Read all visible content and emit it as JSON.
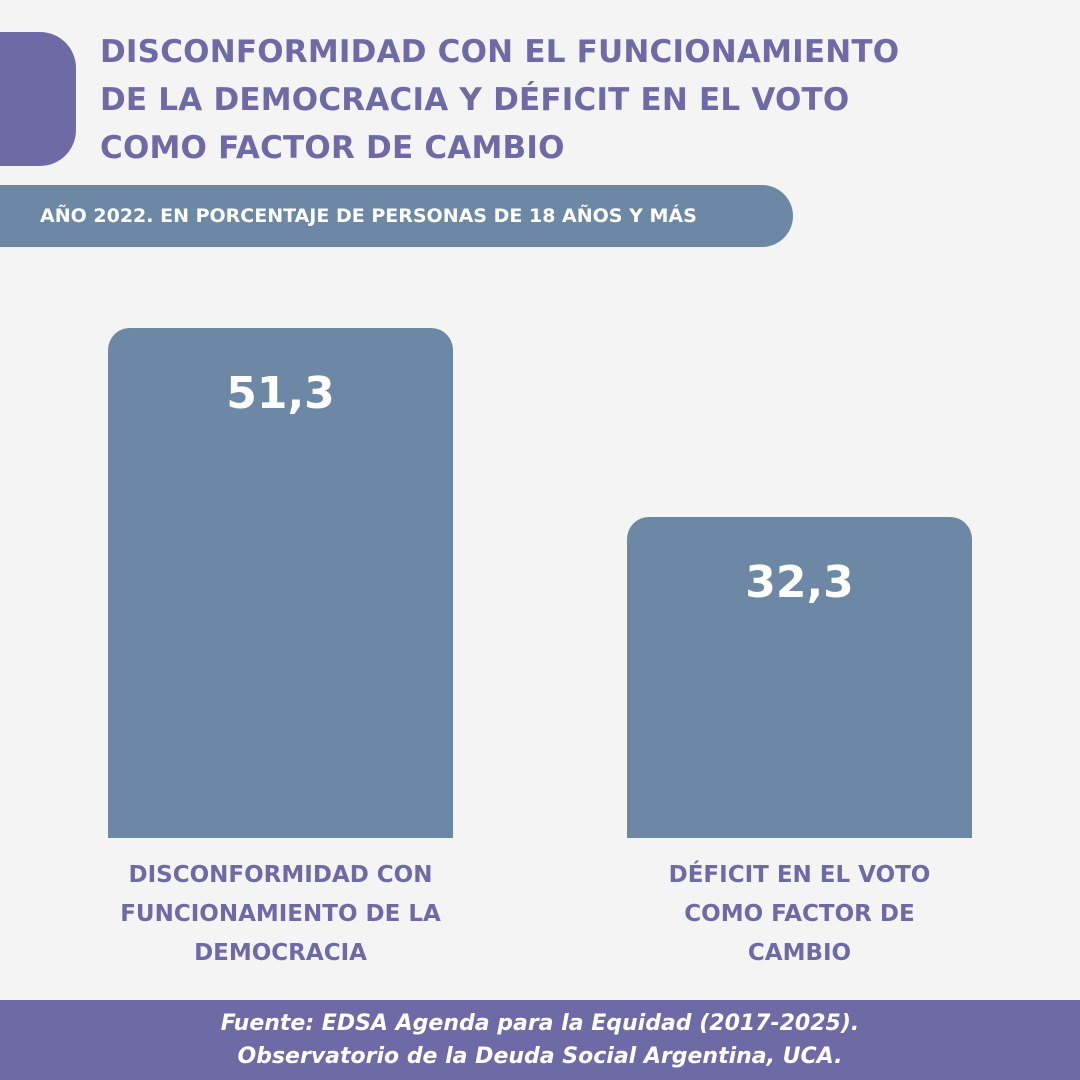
{
  "header": {
    "title_lines": [
      "DISCONFORMIDAD CON EL FUNCIONAMIENTO",
      "DE LA DEMOCRACIA Y DÉFICIT EN EL VOTO",
      "COMO FACTOR DE CAMBIO"
    ],
    "subtitle": "AÑO 2022. EN PORCENTAJE DE PERSONAS DE 18 AÑOS Y MÁS"
  },
  "colors": {
    "accent": "#6e6aa6",
    "bar": "#6d88a4",
    "background": "#f4f4f4"
  },
  "chart_data": {
    "type": "bar",
    "title": "DISCONFORMIDAD CON EL FUNCIONAMIENTO DE LA DEMOCRACIA Y DÉFICIT EN EL VOTO COMO FACTOR DE CAMBIO",
    "subtitle": "AÑO 2022. EN PORCENTAJE DE PERSONAS DE 18 AÑOS Y MÁS",
    "categories": [
      [
        "DISCONFORMIDAD CON",
        "FUNCIONAMIENTO DE LA",
        "DEMOCRACIA"
      ],
      [
        "DÉFICIT EN EL VOTO",
        "COMO FACTOR DE",
        "CAMBIO"
      ]
    ],
    "values": [
      51.3,
      32.3
    ],
    "value_labels": [
      "51,3",
      "32,3"
    ],
    "ylim": [
      0,
      51.3
    ],
    "grid": false,
    "axes_visible": false
  },
  "footer": {
    "lines": [
      "Fuente: EDSA Agenda para la Equidad (2017-2025).",
      "Observatorio de la Deuda Social Argentina, UCA."
    ]
  }
}
